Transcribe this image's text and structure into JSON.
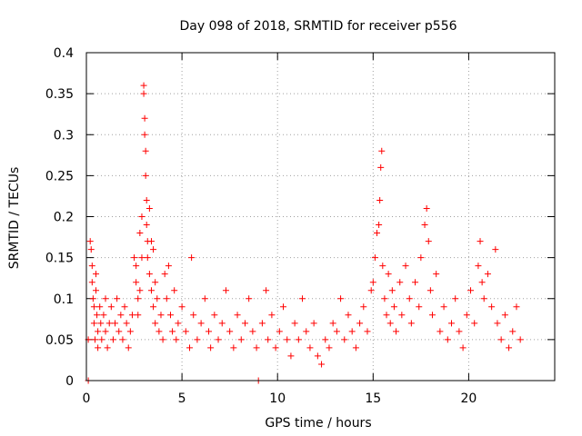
{
  "chart_data": {
    "type": "scatter",
    "title": "Day 098 of 2018, SRMTID for receiver p556",
    "xlabel": "GPS time / hours",
    "ylabel": "SRMTID / TECUs",
    "xlim": [
      0,
      24.5
    ],
    "ylim": [
      0,
      0.4
    ],
    "xticks": [
      0,
      5,
      10,
      15,
      20
    ],
    "xtick_labels": [
      "0",
      "5",
      "10",
      "15",
      "20"
    ],
    "yticks": [
      0,
      0.05,
      0.1,
      0.15,
      0.2,
      0.25,
      0.3,
      0.35,
      0.4
    ],
    "ytick_labels": [
      "0",
      "0.05",
      "0.1",
      "0.15",
      "0.2",
      "0.25",
      "0.3",
      "0.35",
      "0.4"
    ],
    "grid": true,
    "marker": "+",
    "color": "#ff0000",
    "series": [
      {
        "name": "SRMTID",
        "points": [
          [
            0.1,
            0.0
          ],
          [
            0.1,
            0.05
          ],
          [
            0.2,
            0.17
          ],
          [
            0.25,
            0.16
          ],
          [
            0.3,
            0.14
          ],
          [
            0.3,
            0.12
          ],
          [
            0.35,
            0.1
          ],
          [
            0.4,
            0.09
          ],
          [
            0.4,
            0.07
          ],
          [
            0.45,
            0.05
          ],
          [
            0.5,
            0.13
          ],
          [
            0.5,
            0.11
          ],
          [
            0.55,
            0.08
          ],
          [
            0.6,
            0.06
          ],
          [
            0.6,
            0.04
          ],
          [
            0.7,
            0.09
          ],
          [
            0.75,
            0.07
          ],
          [
            0.8,
            0.05
          ],
          [
            0.9,
            0.08
          ],
          [
            1.0,
            0.06
          ],
          [
            1.0,
            0.1
          ],
          [
            1.1,
            0.04
          ],
          [
            1.2,
            0.07
          ],
          [
            1.3,
            0.09
          ],
          [
            1.4,
            0.05
          ],
          [
            1.5,
            0.07
          ],
          [
            1.6,
            0.1
          ],
          [
            1.7,
            0.06
          ],
          [
            1.8,
            0.08
          ],
          [
            1.9,
            0.05
          ],
          [
            2.0,
            0.09
          ],
          [
            2.1,
            0.07
          ],
          [
            2.2,
            0.04
          ],
          [
            2.3,
            0.06
          ],
          [
            2.4,
            0.08
          ],
          [
            2.5,
            0.15
          ],
          [
            2.6,
            0.14
          ],
          [
            2.6,
            0.12
          ],
          [
            2.7,
            0.1
          ],
          [
            2.7,
            0.08
          ],
          [
            2.8,
            0.18
          ],
          [
            2.8,
            0.11
          ],
          [
            2.9,
            0.2
          ],
          [
            2.9,
            0.15
          ],
          [
            3.0,
            0.36
          ],
          [
            3.0,
            0.35
          ],
          [
            3.05,
            0.32
          ],
          [
            3.05,
            0.3
          ],
          [
            3.1,
            0.28
          ],
          [
            3.1,
            0.25
          ],
          [
            3.15,
            0.22
          ],
          [
            3.15,
            0.19
          ],
          [
            3.2,
            0.17
          ],
          [
            3.2,
            0.15
          ],
          [
            3.3,
            0.21
          ],
          [
            3.3,
            0.13
          ],
          [
            3.4,
            0.17
          ],
          [
            3.4,
            0.11
          ],
          [
            3.5,
            0.16
          ],
          [
            3.5,
            0.09
          ],
          [
            3.6,
            0.12
          ],
          [
            3.6,
            0.07
          ],
          [
            3.7,
            0.1
          ],
          [
            3.8,
            0.06
          ],
          [
            3.9,
            0.08
          ],
          [
            4.0,
            0.05
          ],
          [
            4.1,
            0.13
          ],
          [
            4.2,
            0.1
          ],
          [
            4.3,
            0.14
          ],
          [
            4.4,
            0.08
          ],
          [
            4.5,
            0.06
          ],
          [
            4.6,
            0.11
          ],
          [
            4.7,
            0.05
          ],
          [
            4.8,
            0.07
          ],
          [
            5.0,
            0.09
          ],
          [
            5.2,
            0.06
          ],
          [
            5.4,
            0.04
          ],
          [
            5.5,
            0.15
          ],
          [
            5.6,
            0.08
          ],
          [
            5.8,
            0.05
          ],
          [
            6.0,
            0.07
          ],
          [
            6.2,
            0.1
          ],
          [
            6.4,
            0.06
          ],
          [
            6.5,
            0.04
          ],
          [
            6.7,
            0.08
          ],
          [
            6.9,
            0.05
          ],
          [
            7.1,
            0.07
          ],
          [
            7.3,
            0.11
          ],
          [
            7.5,
            0.06
          ],
          [
            7.7,
            0.04
          ],
          [
            7.9,
            0.08
          ],
          [
            8.1,
            0.05
          ],
          [
            8.3,
            0.07
          ],
          [
            8.5,
            0.1
          ],
          [
            8.7,
            0.06
          ],
          [
            8.9,
            0.04
          ],
          [
            9.0,
            0.0
          ],
          [
            9.2,
            0.07
          ],
          [
            9.4,
            0.11
          ],
          [
            9.5,
            0.05
          ],
          [
            9.7,
            0.08
          ],
          [
            9.9,
            0.04
          ],
          [
            10.1,
            0.06
          ],
          [
            10.3,
            0.09
          ],
          [
            10.5,
            0.05
          ],
          [
            10.7,
            0.03
          ],
          [
            10.9,
            0.07
          ],
          [
            11.1,
            0.05
          ],
          [
            11.3,
            0.1
          ],
          [
            11.5,
            0.06
          ],
          [
            11.7,
            0.04
          ],
          [
            11.9,
            0.07
          ],
          [
            12.1,
            0.03
          ],
          [
            12.3,
            0.02
          ],
          [
            12.5,
            0.05
          ],
          [
            12.7,
            0.04
          ],
          [
            12.9,
            0.07
          ],
          [
            13.1,
            0.06
          ],
          [
            13.3,
            0.1
          ],
          [
            13.5,
            0.05
          ],
          [
            13.7,
            0.08
          ],
          [
            13.9,
            0.06
          ],
          [
            14.1,
            0.04
          ],
          [
            14.3,
            0.07
          ],
          [
            14.5,
            0.09
          ],
          [
            14.7,
            0.06
          ],
          [
            14.9,
            0.11
          ],
          [
            15.0,
            0.12
          ],
          [
            15.1,
            0.15
          ],
          [
            15.2,
            0.18
          ],
          [
            15.3,
            0.19
          ],
          [
            15.35,
            0.22
          ],
          [
            15.4,
            0.26
          ],
          [
            15.45,
            0.28
          ],
          [
            15.5,
            0.14
          ],
          [
            15.6,
            0.1
          ],
          [
            15.7,
            0.08
          ],
          [
            15.8,
            0.13
          ],
          [
            15.9,
            0.07
          ],
          [
            16.0,
            0.11
          ],
          [
            16.1,
            0.09
          ],
          [
            16.2,
            0.06
          ],
          [
            16.4,
            0.12
          ],
          [
            16.5,
            0.08
          ],
          [
            16.7,
            0.14
          ],
          [
            16.9,
            0.1
          ],
          [
            17.0,
            0.07
          ],
          [
            17.2,
            0.12
          ],
          [
            17.4,
            0.09
          ],
          [
            17.5,
            0.15
          ],
          [
            17.7,
            0.19
          ],
          [
            17.8,
            0.21
          ],
          [
            17.9,
            0.17
          ],
          [
            18.0,
            0.11
          ],
          [
            18.1,
            0.08
          ],
          [
            18.3,
            0.13
          ],
          [
            18.5,
            0.06
          ],
          [
            18.7,
            0.09
          ],
          [
            18.9,
            0.05
          ],
          [
            19.1,
            0.07
          ],
          [
            19.3,
            0.1
          ],
          [
            19.5,
            0.06
          ],
          [
            19.7,
            0.04
          ],
          [
            19.9,
            0.08
          ],
          [
            20.1,
            0.11
          ],
          [
            20.3,
            0.07
          ],
          [
            20.5,
            0.14
          ],
          [
            20.6,
            0.17
          ],
          [
            20.7,
            0.12
          ],
          [
            20.8,
            0.1
          ],
          [
            21.0,
            0.13
          ],
          [
            21.2,
            0.09
          ],
          [
            21.4,
            0.16
          ],
          [
            21.5,
            0.07
          ],
          [
            21.7,
            0.05
          ],
          [
            21.9,
            0.08
          ],
          [
            22.1,
            0.04
          ],
          [
            22.3,
            0.06
          ],
          [
            22.5,
            0.09
          ],
          [
            22.7,
            0.05
          ]
        ]
      }
    ]
  }
}
